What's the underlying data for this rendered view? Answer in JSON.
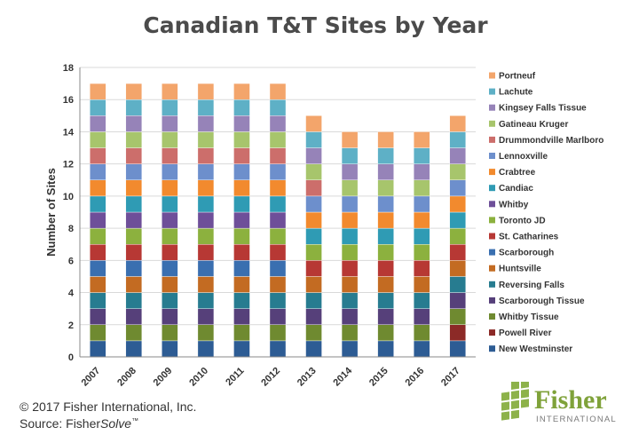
{
  "chart_data": {
    "type": "bar",
    "stacked": true,
    "title": "Canadian T&T Sites by Year",
    "xlabel": "",
    "ylabel": "Number of Sites",
    "ylim": [
      0,
      18
    ],
    "yticks": [
      0,
      2,
      4,
      6,
      8,
      10,
      12,
      14,
      16,
      18
    ],
    "grid": true,
    "legend_position": "right",
    "categories": [
      "2007",
      "2008",
      "2009",
      "2010",
      "2011",
      "2012",
      "2013",
      "2014",
      "2015",
      "2016",
      "2017"
    ],
    "series": [
      {
        "name": "New Westminster",
        "color": "#2d5c94",
        "values": [
          1,
          1,
          1,
          1,
          1,
          1,
          1,
          1,
          1,
          1,
          1
        ]
      },
      {
        "name": "Powell River",
        "color": "#8c2a27",
        "values": [
          0,
          0,
          0,
          0,
          0,
          0,
          0,
          0,
          0,
          0,
          1
        ]
      },
      {
        "name": "Whitby Tissue",
        "color": "#6f8a30",
        "values": [
          1,
          1,
          1,
          1,
          1,
          1,
          1,
          1,
          1,
          1,
          1
        ]
      },
      {
        "name": "Scarborough Tissue",
        "color": "#56407a",
        "values": [
          1,
          1,
          1,
          1,
          1,
          1,
          1,
          1,
          1,
          1,
          1
        ]
      },
      {
        "name": "Reversing Falls",
        "color": "#277c90",
        "values": [
          1,
          1,
          1,
          1,
          1,
          1,
          1,
          1,
          1,
          1,
          1
        ]
      },
      {
        "name": "Huntsville",
        "color": "#c36b22",
        "values": [
          1,
          1,
          1,
          1,
          1,
          1,
          1,
          1,
          1,
          1,
          1
        ]
      },
      {
        "name": "Scarborough",
        "color": "#3a6fb0",
        "values": [
          1,
          1,
          1,
          1,
          1,
          1,
          0,
          0,
          0,
          0,
          0
        ]
      },
      {
        "name": "St. Catharines",
        "color": "#b73834",
        "values": [
          1,
          1,
          1,
          1,
          1,
          1,
          1,
          1,
          1,
          1,
          1
        ]
      },
      {
        "name": "Toronto JD",
        "color": "#8cb13e",
        "values": [
          1,
          1,
          1,
          1,
          1,
          1,
          1,
          1,
          1,
          1,
          1
        ]
      },
      {
        "name": "Whitby",
        "color": "#6e4f99",
        "values": [
          1,
          1,
          1,
          1,
          1,
          1,
          0,
          0,
          0,
          0,
          0
        ]
      },
      {
        "name": "Candiac",
        "color": "#2f9bb4",
        "values": [
          1,
          1,
          1,
          1,
          1,
          1,
          1,
          1,
          1,
          1,
          1
        ]
      },
      {
        "name": "Crabtree",
        "color": "#f28a2e",
        "values": [
          1,
          1,
          1,
          1,
          1,
          1,
          1,
          1,
          1,
          1,
          1
        ]
      },
      {
        "name": "Lennoxville",
        "color": "#6d8fcc",
        "values": [
          1,
          1,
          1,
          1,
          1,
          1,
          1,
          1,
          1,
          1,
          1
        ]
      },
      {
        "name": "Drummondville Marlboro",
        "color": "#cc6e6b",
        "values": [
          1,
          1,
          1,
          1,
          1,
          1,
          1,
          0,
          0,
          0,
          0
        ]
      },
      {
        "name": "Gatineau Kruger",
        "color": "#a7c56c",
        "values": [
          1,
          1,
          1,
          1,
          1,
          1,
          1,
          1,
          1,
          1,
          1
        ]
      },
      {
        "name": "Kingsey Falls Tissue",
        "color": "#9683b8",
        "values": [
          1,
          1,
          1,
          1,
          1,
          1,
          1,
          1,
          1,
          1,
          1
        ]
      },
      {
        "name": "Lachute",
        "color": "#5eb0c6",
        "values": [
          1,
          1,
          1,
          1,
          1,
          1,
          1,
          1,
          1,
          1,
          1
        ]
      },
      {
        "name": "Portneuf",
        "color": "#f3a56b",
        "values": [
          1,
          1,
          1,
          1,
          1,
          1,
          1,
          1,
          1,
          1,
          1
        ]
      }
    ]
  },
  "footer": {
    "copyright": "© 2017 Fisher International, Inc.",
    "source_prefix": "Source: Fisher",
    "source_product": "Solve",
    "source_tm": "™"
  },
  "logo": {
    "name": "Fisher",
    "subtitle": "INTERNATIONAL",
    "name_color": "#7fa23a",
    "square_color": "#8db24a"
  }
}
